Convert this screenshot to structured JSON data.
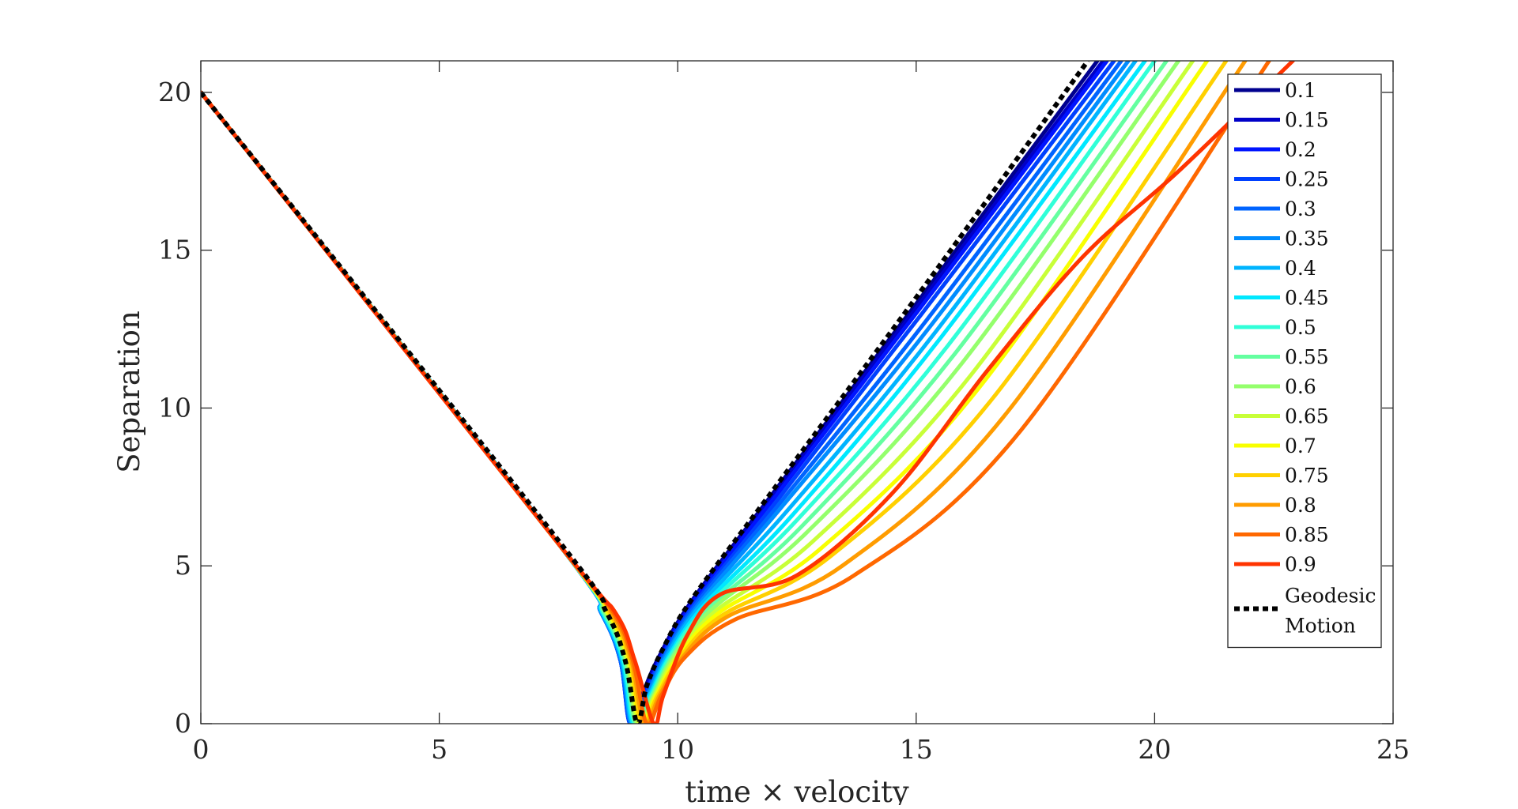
{
  "chart_data": {
    "type": "line",
    "xlabel": "time × velocity",
    "ylabel": "Separation",
    "xlim": [
      0,
      25
    ],
    "ylim": [
      0,
      21
    ],
    "xticks": [
      "0",
      "5",
      "10",
      "15",
      "20",
      "25"
    ],
    "yticks": [
      "0",
      "5",
      "10",
      "15",
      "20"
    ],
    "grid": false,
    "legend_position": "top-right",
    "colors": {
      "0.1": "#00008f",
      "0.15": "#0000c8",
      "0.2": "#0014ff",
      "0.25": "#0040ff",
      "0.3": "#0064ff",
      "0.35": "#008cff",
      "0.4": "#00b4ff",
      "0.45": "#00e8ff",
      "0.5": "#30ffd8",
      "0.55": "#64ffa0",
      "0.6": "#94ff6c",
      "0.65": "#c8ff38",
      "0.7": "#f8ff00",
      "0.75": "#ffd000",
      "0.8": "#ff9c00",
      "0.85": "#ff6800",
      "0.9": "#ff3400",
      "geodesic": "#000000"
    },
    "series": [
      {
        "name": "0.1",
        "x": [
          0,
          7.5,
          8.4,
          8.8,
          9.0,
          9.25,
          9.6,
          10.3,
          12,
          15,
          18.8
        ],
        "y": [
          20,
          5.7,
          3.5,
          2.0,
          0,
          0.9,
          2.1,
          3.9,
          7.3,
          13.3,
          21
        ]
      },
      {
        "name": "0.15",
        "x": [
          0,
          7.5,
          8.4,
          8.8,
          9.0,
          9.27,
          9.62,
          10.32,
          12.02,
          15.02,
          18.92
        ],
        "y": [
          20,
          5.7,
          3.5,
          2.0,
          0,
          0.9,
          2.1,
          3.9,
          7.25,
          13.2,
          21
        ]
      },
      {
        "name": "0.2",
        "x": [
          0,
          7.5,
          8.4,
          8.8,
          9.0,
          9.3,
          9.65,
          10.35,
          12.05,
          15.05,
          19.0
        ],
        "y": [
          20,
          5.7,
          3.5,
          2.0,
          0,
          0.9,
          2.1,
          3.9,
          7.2,
          13.1,
          21
        ]
      },
      {
        "name": "0.25",
        "x": [
          0,
          7.5,
          8.4,
          8.8,
          9.0,
          9.32,
          9.67,
          10.38,
          12.1,
          15.1,
          19.15
        ],
        "y": [
          20,
          5.7,
          3.5,
          2.0,
          0,
          0.9,
          2.1,
          3.85,
          7.1,
          12.95,
          21
        ]
      },
      {
        "name": "0.3",
        "x": [
          0,
          7.5,
          8.4,
          8.8,
          9.02,
          9.35,
          9.7,
          10.42,
          12.15,
          15.2,
          19.3
        ],
        "y": [
          20,
          5.7,
          3.5,
          2.0,
          0,
          0.9,
          2.1,
          3.85,
          7.0,
          12.75,
          21
        ]
      },
      {
        "name": "0.35",
        "x": [
          0,
          7.5,
          8.4,
          8.82,
          9.03,
          9.37,
          9.73,
          10.45,
          12.2,
          15.3,
          19.45
        ],
        "y": [
          20,
          5.7,
          3.5,
          2.0,
          0,
          0.9,
          2.1,
          3.8,
          6.9,
          12.6,
          21
        ]
      },
      {
        "name": "0.4",
        "x": [
          0,
          7.5,
          8.42,
          8.83,
          9.05,
          9.4,
          9.76,
          10.5,
          12.3,
          15.4,
          19.6
        ],
        "y": [
          20,
          5.7,
          3.5,
          2.0,
          0,
          0.9,
          2.1,
          3.8,
          6.75,
          12.4,
          21
        ]
      },
      {
        "name": "0.45",
        "x": [
          0,
          7.5,
          8.43,
          8.85,
          9.07,
          9.42,
          9.8,
          10.55,
          12.4,
          15.5,
          19.8
        ],
        "y": [
          20,
          5.7,
          3.5,
          2.0,
          0,
          0.9,
          2.1,
          3.75,
          6.6,
          12.2,
          21
        ]
      },
      {
        "name": "0.5",
        "x": [
          0,
          7.5,
          8.45,
          8.87,
          9.1,
          9.45,
          9.83,
          10.6,
          12.5,
          15.65,
          20.0
        ],
        "y": [
          20,
          5.7,
          3.5,
          2.0,
          0,
          0.9,
          2.1,
          3.7,
          6.45,
          11.95,
          21
        ]
      },
      {
        "name": "0.55",
        "x": [
          0,
          7.5,
          8.47,
          8.9,
          9.12,
          9.47,
          9.87,
          10.65,
          12.6,
          15.8,
          20.25
        ],
        "y": [
          20,
          5.7,
          3.5,
          2.0,
          0,
          0.9,
          2.1,
          3.65,
          6.25,
          11.7,
          21
        ]
      },
      {
        "name": "0.6",
        "x": [
          0,
          7.5,
          8.5,
          8.92,
          9.15,
          9.5,
          9.9,
          10.7,
          12.7,
          15.95,
          20.5
        ],
        "y": [
          20,
          5.7,
          3.5,
          2.0,
          0,
          0.9,
          2.1,
          3.6,
          6.05,
          11.4,
          21
        ]
      },
      {
        "name": "0.65",
        "x": [
          0,
          7.5,
          8.52,
          8.95,
          9.18,
          9.52,
          9.95,
          10.78,
          12.85,
          16.15,
          20.8
        ],
        "y": [
          20,
          5.7,
          3.5,
          2.0,
          0,
          0.9,
          2.1,
          3.55,
          5.8,
          11.05,
          21
        ]
      },
      {
        "name": "0.7",
        "x": [
          0,
          7.5,
          8.55,
          8.98,
          9.22,
          9.55,
          10.0,
          10.85,
          13.0,
          16.35,
          21.1
        ],
        "y": [
          20,
          5.7,
          3.5,
          2.0,
          0,
          0.9,
          2.1,
          3.5,
          5.55,
          10.7,
          21
        ]
      },
      {
        "name": "0.75",
        "x": [
          0,
          7.5,
          8.58,
          9.0,
          9.25,
          9.58,
          10.05,
          10.95,
          13.2,
          16.6,
          21.5
        ],
        "y": [
          20,
          5.7,
          3.5,
          2.0,
          0,
          0.9,
          2.1,
          3.45,
          5.3,
          10.3,
          21
        ]
      },
      {
        "name": "0.8",
        "x": [
          0,
          7.5,
          8.62,
          9.03,
          9.3,
          9.62,
          10.1,
          11.05,
          13.45,
          16.9,
          21.9
        ],
        "y": [
          20,
          5.7,
          3.5,
          2.0,
          0,
          0.9,
          2.1,
          3.4,
          5.0,
          9.85,
          21
        ]
      },
      {
        "name": "0.85",
        "x": [
          0,
          7.5,
          8.66,
          9.06,
          9.35,
          9.66,
          10.15,
          11.2,
          13.7,
          17.2,
          22.4
        ],
        "y": [
          20,
          5.7,
          3.5,
          2.0,
          0,
          0.9,
          2.1,
          3.3,
          4.7,
          9.3,
          21
        ]
      },
      {
        "name": "0.9",
        "x": [
          0,
          7.5,
          8.7,
          9.1,
          9.5,
          9.7,
          10.2,
          10.9,
          12.5,
          14.5,
          16.5,
          18.5,
          20.5,
          22.9
        ],
        "y": [
          20,
          5.7,
          3.5,
          2.0,
          0,
          0.9,
          2.8,
          4.1,
          4.7,
          7.3,
          11.2,
          14.8,
          17.5,
          21
        ]
      },
      {
        "name": "Geodesic Motion",
        "x": [
          0,
          7.5,
          8.5,
          8.9,
          9.15,
          9.35,
          9.7,
          10.3,
          12,
          15,
          18.6
        ],
        "y": [
          20,
          5.8,
          3.55,
          2.0,
          0,
          1.2,
          2.4,
          3.95,
          7.4,
          13.5,
          21
        ]
      }
    ]
  }
}
